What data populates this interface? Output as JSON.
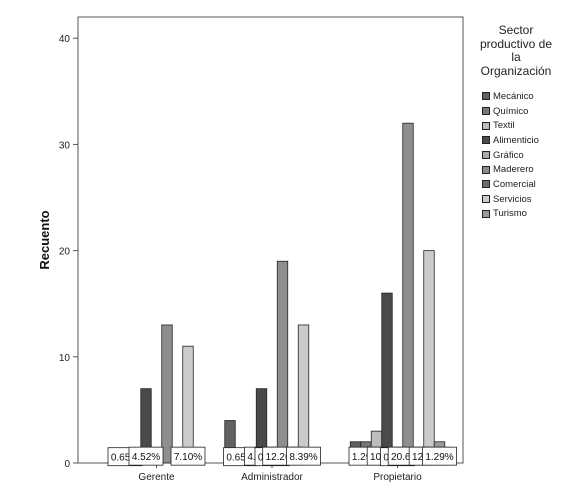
{
  "chart_data": {
    "type": "bar",
    "ylabel": "Recuento",
    "ylim": [
      0,
      42
    ],
    "yticks": [
      "0",
      "10",
      "20",
      "30",
      "40"
    ],
    "categories": [
      "Gerente",
      "Administrador",
      "Propietario"
    ],
    "legend_title": "Sector\nproductivo de\nla\nOrganización",
    "legend_position": "right",
    "series": [
      {
        "name": "Mecánico",
        "color": "#616161",
        "values": [
          0,
          4,
          2
        ],
        "labels": [
          "",
          "",
          ""
        ]
      },
      {
        "name": "Químico",
        "color": "#777777",
        "values": [
          1,
          1,
          2
        ],
        "labels": [
          "0.65%",
          "0.65%",
          "1.29%"
        ]
      },
      {
        "name": "Textil",
        "color": "#bdbdbd",
        "values": [
          0,
          0,
          3
        ],
        "labels": [
          "",
          "",
          ""
        ]
      },
      {
        "name": "Alimenticio",
        "color": "#4a4a4a",
        "values": [
          7,
          7,
          16
        ],
        "labels": [
          "4.52%",
          "4.52%",
          "10.32%"
        ]
      },
      {
        "name": "Gráfico",
        "color": "#a9a9a9",
        "values": [
          0,
          1,
          1
        ],
        "labels": [
          "",
          "0.65%",
          "0.65%"
        ]
      },
      {
        "name": "Maderero",
        "color": "#8e8e8e",
        "values": [
          13,
          19,
          32
        ],
        "labels": [
          "",
          "12.26%",
          "20.65%"
        ]
      },
      {
        "name": "Comercial",
        "color": "#6d6d6d",
        "values": [
          0,
          0,
          0
        ],
        "labels": [
          "",
          "",
          ""
        ]
      },
      {
        "name": "Servicios",
        "color": "#cbcbcb",
        "values": [
          11,
          13,
          20
        ],
        "labels": [
          "7.10%",
          "8.39%",
          "12.90%"
        ]
      },
      {
        "name": "Turismo",
        "color": "#9a9a9a",
        "values": [
          0,
          0,
          2
        ],
        "labels": [
          "",
          "",
          "1.29%"
        ]
      }
    ]
  }
}
